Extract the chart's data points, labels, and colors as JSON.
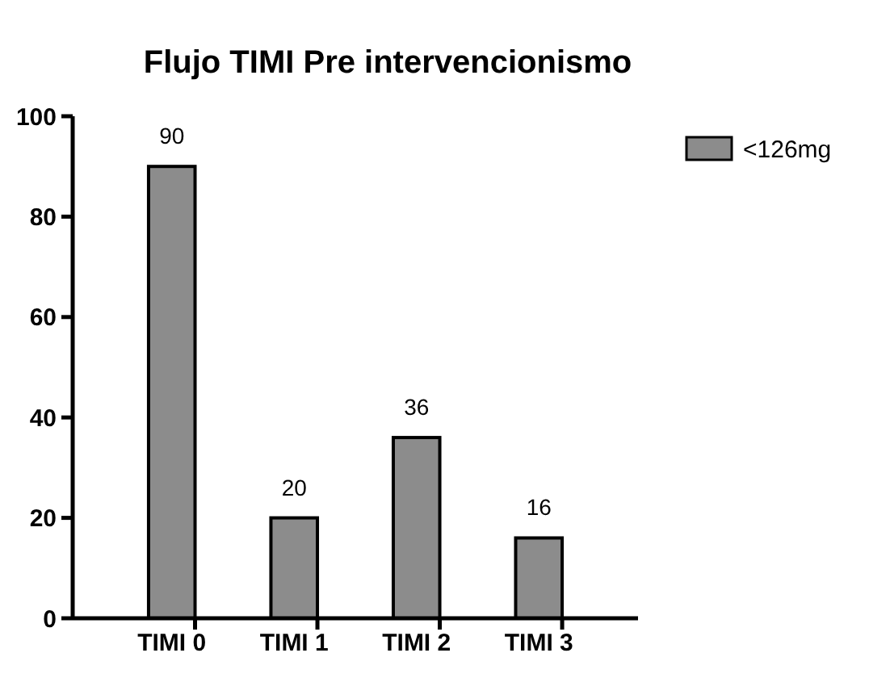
{
  "chart_data": {
    "type": "bar",
    "title": "Flujo TIMI Pre intervencionismo",
    "categories": [
      "TIMI 0",
      "TIMI 1",
      "TIMI 2",
      "TIMI 3"
    ],
    "series": [
      {
        "name": "<126mg",
        "color": "#8c8c8c",
        "values": [
          90,
          20,
          36,
          16
        ]
      }
    ],
    "ylim": [
      0,
      100
    ],
    "yticks": [
      0,
      20,
      40,
      60,
      80,
      100
    ],
    "data_labels": true,
    "legend": "top right",
    "grid": false
  }
}
